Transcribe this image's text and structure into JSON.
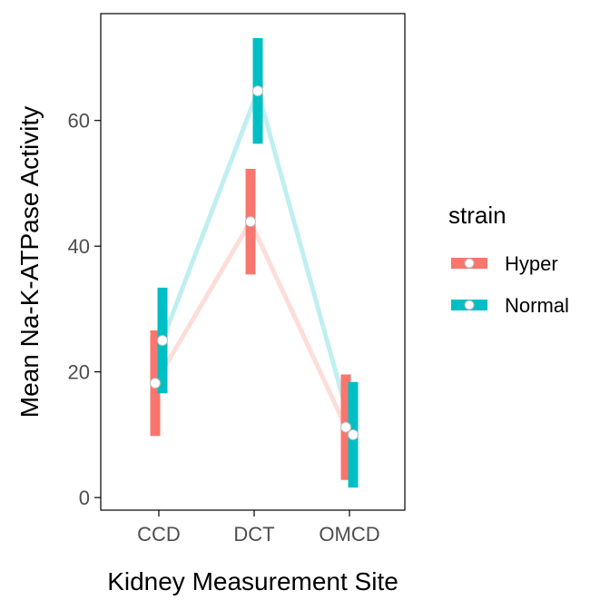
{
  "chart_data": {
    "type": "line",
    "xlabel": "Kidney Measurement Site",
    "ylabel": "Mean Na-K-ATPase Activity",
    "categories": [
      "CCD",
      "DCT",
      "OMCD"
    ],
    "ylim": [
      -2,
      77
    ],
    "yticks": [
      0,
      20,
      40,
      60
    ],
    "grid": false,
    "legend": {
      "title": "strain",
      "position": "right"
    },
    "series": [
      {
        "name": "Hyper",
        "color": "#F8766D",
        "values": [
          18.2,
          43.9,
          11.2
        ],
        "lower": [
          9.8,
          35.5,
          2.8
        ],
        "upper": [
          26.6,
          52.3,
          19.6
        ]
      },
      {
        "name": "Normal",
        "color": "#00BFC4",
        "values": [
          25.0,
          64.7,
          10.0
        ],
        "lower": [
          16.6,
          56.3,
          1.6
        ],
        "upper": [
          33.4,
          73.1,
          18.4
        ]
      }
    ]
  }
}
